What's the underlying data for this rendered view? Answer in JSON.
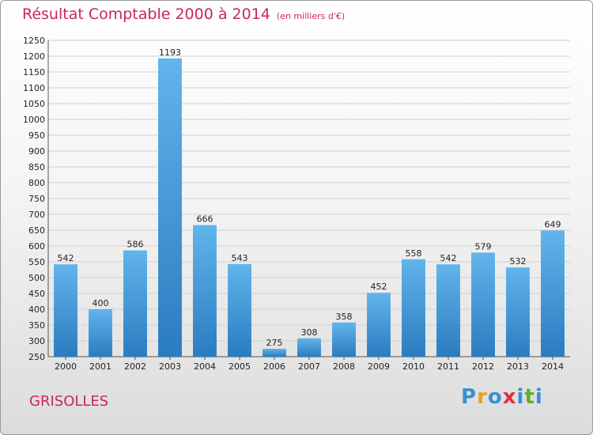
{
  "title": "Résultat Comptable 2000 à 2014",
  "subtitle": "(en milliers d'€)",
  "commune": "GRISOLLES",
  "logo": {
    "letters": [
      "P",
      "r",
      "o",
      "x",
      "i",
      "t",
      "i"
    ],
    "colors": [
      "#3a8fd6",
      "#e8a020",
      "#3a8fd6",
      "#e03040",
      "#3a8fd6",
      "#5cb030",
      "#3a8fd6"
    ]
  },
  "colors": {
    "bar_top": "#62b4ec",
    "bar_bottom": "#2a7cc0",
    "title": "#c8285a"
  },
  "chart_data": {
    "type": "bar",
    "categories": [
      "2000",
      "2001",
      "2002",
      "2003",
      "2004",
      "2005",
      "2006",
      "2007",
      "2008",
      "2009",
      "2010",
      "2011",
      "2012",
      "2013",
      "2014"
    ],
    "values": [
      542,
      400,
      586,
      1193,
      666,
      543,
      275,
      308,
      358,
      452,
      558,
      542,
      579,
      532,
      649
    ],
    "data_labels": [
      "542",
      "400",
      "586",
      "1193",
      "666",
      "543",
      "275",
      "308",
      "358",
      "452",
      "558",
      "542",
      "579",
      "532",
      "649"
    ],
    "ylim": [
      250,
      1250
    ],
    "yticks": [
      "250",
      "300",
      "350",
      "400",
      "450",
      "500",
      "550",
      "600",
      "650",
      "700",
      "750",
      "800",
      "850",
      "900",
      "950",
      "1000",
      "1050",
      "1100",
      "1150",
      "1200",
      "1250"
    ],
    "grid": true
  }
}
